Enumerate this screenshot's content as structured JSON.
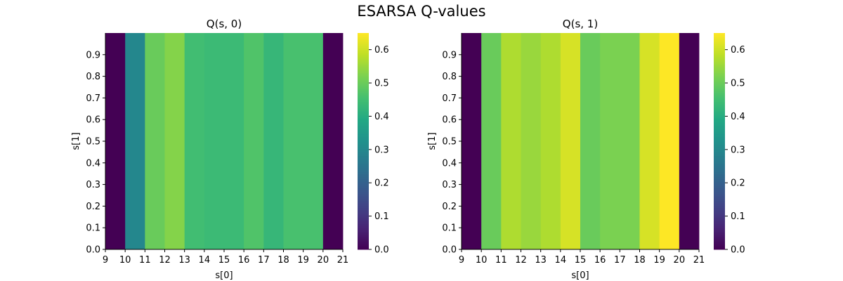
{
  "figure": {
    "title": "ESARSA Q-values"
  },
  "chart_data": [
    {
      "type": "heatmap",
      "title": "Q(s, 0)",
      "xlabel": "s[0]",
      "ylabel": "s[1]",
      "x_ticks": [
        "9",
        "10",
        "11",
        "12",
        "13",
        "14",
        "15",
        "16",
        "17",
        "18",
        "19",
        "20",
        "21"
      ],
      "y_ticks": [
        "0.0",
        "0.1",
        "0.2",
        "0.3",
        "0.4",
        "0.5",
        "0.6",
        "0.7",
        "0.8",
        "0.9"
      ],
      "x_range": [
        9,
        21
      ],
      "y_range": [
        0.0,
        1.0
      ],
      "columns": [
        9,
        10,
        11,
        12,
        13,
        14,
        15,
        16,
        17,
        18,
        19,
        20
      ],
      "values": [
        0.0,
        0.3,
        0.5,
        0.53,
        0.45,
        0.44,
        0.44,
        0.47,
        0.43,
        0.46,
        0.46,
        0.0
      ],
      "colorbar": {
        "min": 0.0,
        "max": 0.65,
        "ticks": [
          "0.0",
          "0.1",
          "0.2",
          "0.3",
          "0.4",
          "0.5",
          "0.6"
        ],
        "colormap": "viridis"
      }
    },
    {
      "type": "heatmap",
      "title": "Q(s, 1)",
      "xlabel": "s[0]",
      "ylabel": "s[1]",
      "x_ticks": [
        "9",
        "10",
        "11",
        "12",
        "13",
        "14",
        "15",
        "16",
        "17",
        "18",
        "19",
        "20",
        "21"
      ],
      "y_ticks": [
        "0.0",
        "0.1",
        "0.2",
        "0.3",
        "0.4",
        "0.5",
        "0.6",
        "0.7",
        "0.8",
        "0.9"
      ],
      "x_range": [
        9,
        21
      ],
      "y_range": [
        0.0,
        1.0
      ],
      "columns": [
        9,
        10,
        11,
        12,
        13,
        14,
        15,
        16,
        17,
        18,
        19,
        20
      ],
      "values": [
        0.0,
        0.5,
        0.57,
        0.55,
        0.57,
        0.61,
        0.5,
        0.52,
        0.52,
        0.61,
        0.65,
        0.0
      ],
      "colorbar": {
        "min": 0.0,
        "max": 0.65,
        "ticks": [
          "0.0",
          "0.1",
          "0.2",
          "0.3",
          "0.4",
          "0.5",
          "0.6"
        ],
        "colormap": "viridis"
      }
    }
  ]
}
